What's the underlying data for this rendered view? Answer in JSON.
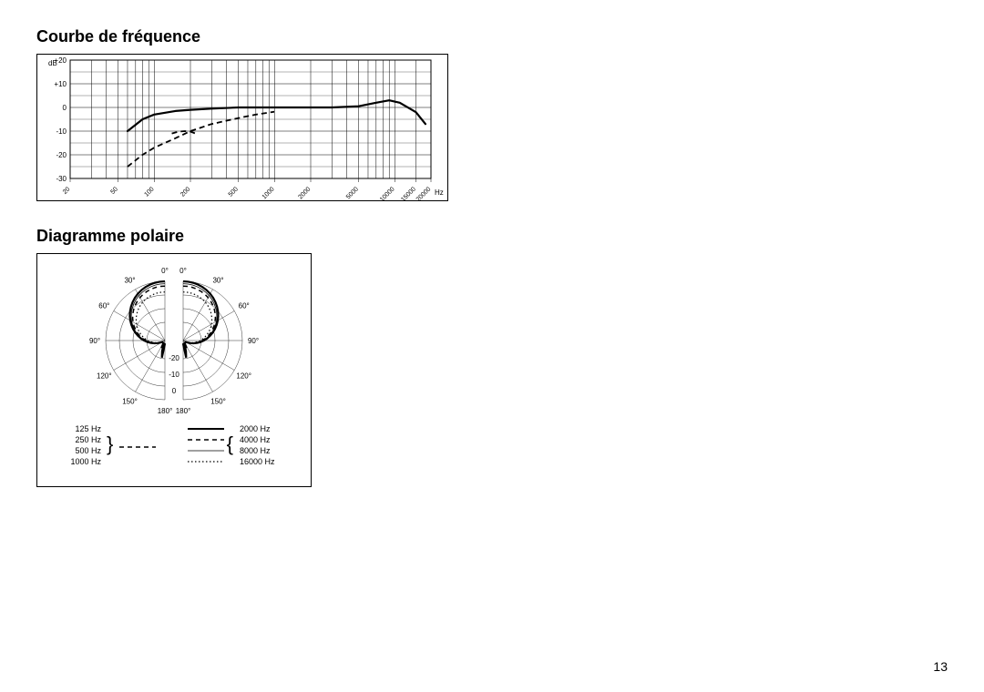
{
  "freq_section": {
    "title": "Courbe de fréquence",
    "y_label": "dB",
    "y_ticks": [
      "+20",
      "+10",
      "0",
      "-10",
      "-20",
      "-30"
    ],
    "x_ticks": [
      "20",
      "50",
      "100",
      "200",
      "500",
      "1000",
      "2000",
      "5000",
      "10000",
      "15000",
      "20000"
    ],
    "x_label": "Hz",
    "y_range": [
      -30,
      20
    ],
    "main_curve": {
      "stroke": "#000000",
      "stroke_width": 2.2,
      "points": [
        [
          60,
          -10
        ],
        [
          80,
          -5
        ],
        [
          100,
          -3
        ],
        [
          150,
          -1.5
        ],
        [
          200,
          -1
        ],
        [
          300,
          -0.5
        ],
        [
          500,
          0
        ],
        [
          1000,
          0
        ],
        [
          2000,
          0
        ],
        [
          3000,
          0
        ],
        [
          5000,
          0.5
        ],
        [
          7000,
          2
        ],
        [
          9000,
          3
        ],
        [
          11000,
          2
        ],
        [
          15000,
          -2
        ],
        [
          18000,
          -7
        ]
      ]
    },
    "dashed_curve": {
      "stroke": "#000000",
      "stroke_width": 1.8,
      "dash": "6,4",
      "points": [
        [
          60,
          -25
        ],
        [
          80,
          -20
        ],
        [
          100,
          -17
        ],
        [
          150,
          -13
        ],
        [
          200,
          -10
        ],
        [
          300,
          -7
        ],
        [
          500,
          -4.5
        ],
        [
          700,
          -3
        ],
        [
          1000,
          -1.8
        ]
      ]
    },
    "dashed_bump": {
      "stroke": "#000000",
      "stroke_width": 1.8,
      "dash": "6,4",
      "points": [
        [
          140,
          -11
        ],
        [
          160,
          -10.2
        ],
        [
          180,
          -10
        ],
        [
          200,
          -10.2
        ],
        [
          220,
          -11
        ]
      ]
    },
    "grid_color": "#000000",
    "grid_width": 0.5
  },
  "polar_section": {
    "title": "Diagramme polaire",
    "angles_left": [
      "180°",
      "150°",
      "120°",
      "90°",
      "60°",
      "30°",
      "0°"
    ],
    "angles_right": [
      "180°",
      "150°",
      "120°",
      "90°",
      "60°",
      "30°",
      "0°"
    ],
    "radial_labels": [
      "-20",
      "-10",
      "0"
    ],
    "legend_left": [
      {
        "label": "125 Hz"
      },
      {
        "label": "250 Hz"
      },
      {
        "label": "500 Hz"
      },
      {
        "label": "1000 Hz"
      }
    ],
    "legend_left_line": {
      "style": "solid"
    },
    "legend_right": [
      {
        "label": "2000 Hz",
        "style": "solid"
      },
      {
        "label": "4000 Hz",
        "style": "dash"
      },
      {
        "label": "8000 Hz",
        "style": "thin"
      },
      {
        "label": "16000 Hz",
        "style": "dot"
      }
    ],
    "stroke_color": "#000000",
    "grid_color": "#000000",
    "main_radius": 65,
    "rings": [
      20,
      35,
      50,
      65
    ]
  },
  "page_number": "13"
}
